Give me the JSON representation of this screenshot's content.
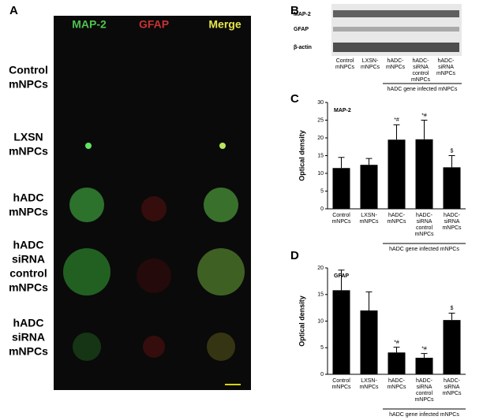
{
  "panels": {
    "a": "A",
    "b": "B",
    "c": "C",
    "d": "D"
  },
  "microscopy": {
    "columns": [
      "MAP-2",
      "GFAP",
      "Merge"
    ],
    "rows": [
      [
        "Control",
        "mNPCs"
      ],
      [
        "LXSN",
        "mNPCs"
      ],
      [
        "hADC",
        "mNPCs"
      ],
      [
        "hADC",
        "siRNA",
        "control",
        "mNPCs"
      ],
      [
        "hADC",
        "siRNA",
        "mNPCs"
      ]
    ]
  },
  "blot": {
    "bands": [
      "MAP-2",
      "GFAP",
      "β-actin"
    ],
    "lanes": [
      [
        "Control",
        "mNPCs"
      ],
      [
        "LXSN-",
        "mNPCs"
      ],
      [
        "hADC-",
        "mNPCs"
      ],
      [
        "hADC-",
        "siRNA",
        "control",
        "mNPCs"
      ],
      [
        "hADC-",
        "siRNA",
        "mNPCs"
      ]
    ],
    "group_label": "hADC gene infected mNPCs"
  },
  "chart_data": [
    {
      "type": "bar",
      "title": "MAP-2",
      "ylabel": "Optical density",
      "categories": [
        [
          "Control",
          "mNPCs"
        ],
        [
          "LXSN-",
          "mNPCs"
        ],
        [
          "hADC-",
          "mNPCs"
        ],
        [
          "hADC-",
          "siRNA",
          "control",
          "mNPCs"
        ],
        [
          "hADC-",
          "siRNA",
          "mNPCs"
        ]
      ],
      "values": [
        11.5,
        12.4,
        19.5,
        19.6,
        11.7
      ],
      "errors": [
        3.0,
        1.8,
        4.2,
        5.4,
        3.3
      ],
      "annotations": [
        null,
        null,
        "*#",
        "*#",
        "$"
      ],
      "color": "#000000",
      "ylim": [
        0,
        30
      ],
      "yticks": [
        0,
        5,
        10,
        15,
        20,
        25,
        30
      ],
      "group_label": "hADC gene infected mNPCs"
    },
    {
      "type": "bar",
      "title": "GFAP",
      "ylabel": "Optical density",
      "categories": [
        [
          "Control",
          "mNPCs"
        ],
        [
          "LXSN-",
          "mNPCs"
        ],
        [
          "hADC-",
          "mNPCs"
        ],
        [
          "hADC-",
          "siRNA",
          "control",
          "mNPCs"
        ],
        [
          "hADC-",
          "siRNA",
          "mNPCs"
        ]
      ],
      "values": [
        15.8,
        12.0,
        4.1,
        3.1,
        10.2
      ],
      "errors": [
        3.8,
        3.5,
        1.0,
        0.8,
        1.3
      ],
      "annotations": [
        null,
        null,
        "*#",
        "*#",
        "$"
      ],
      "color": "#000000",
      "ylim": [
        0,
        20
      ],
      "yticks": [
        0,
        5,
        10,
        15,
        20
      ],
      "group_label": "hADC gene infected mNPCs"
    }
  ]
}
